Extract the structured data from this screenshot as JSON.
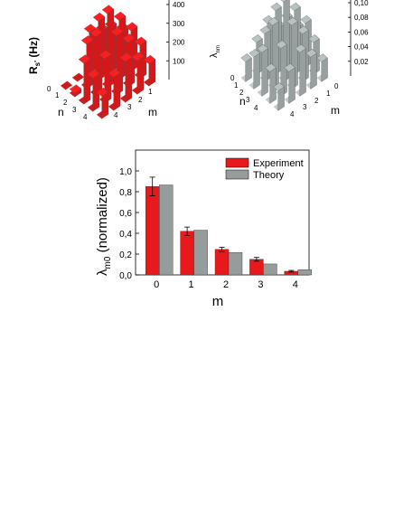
{
  "chart_data": [
    {
      "type": "bar3d",
      "ylabel": "R",
      "ylabel_sub": "s'",
      "ylabel_unit": " (Hz)",
      "xlabel": "n",
      "zlabel": "m",
      "n_ticks": [
        "0",
        "1",
        "2",
        "3",
        "4"
      ],
      "m_ticks": [
        "1",
        "2",
        "3",
        "4"
      ],
      "z_ticks": [
        "100",
        "200",
        "300",
        "400"
      ],
      "color": "#e8191c",
      "base_color": "#d11a1c"
    },
    {
      "type": "bar3d",
      "ylabel": "λ",
      "ylabel_sub": "nm",
      "xlabel": "n",
      "zlabel": "m",
      "n_ticks": [
        "0",
        "1",
        "2",
        "3",
        "4"
      ],
      "m_ticks": [
        "0",
        "1",
        "2",
        "3",
        "4"
      ],
      "z_ticks": [
        "0,02",
        "0,04",
        "0,06",
        "0,08",
        "0,10"
      ],
      "color": "#a5adad",
      "base_color": "#c4caca"
    },
    {
      "type": "bar",
      "xlabel": "m",
      "ylabel": "λ",
      "ylabel_sub": "m0",
      "ylabel_rest": " (normalized)",
      "categories": [
        "0",
        "1",
        "2",
        "3",
        "4"
      ],
      "ylim": [
        0,
        1.2
      ],
      "yticks": [
        "0,0",
        "0,2",
        "0,4",
        "0,6",
        "0,8",
        "1,0"
      ],
      "series": [
        {
          "name": "Experiment",
          "color": "#e8191c",
          "values": [
            0.85,
            0.42,
            0.245,
            0.15,
            0.035
          ],
          "errors": [
            0.09,
            0.04,
            0.02,
            0.018,
            0.008
          ]
        },
        {
          "name": "Theory",
          "color": "#969c9c",
          "values": [
            0.865,
            0.43,
            0.215,
            0.105,
            0.05
          ]
        }
      ]
    }
  ]
}
